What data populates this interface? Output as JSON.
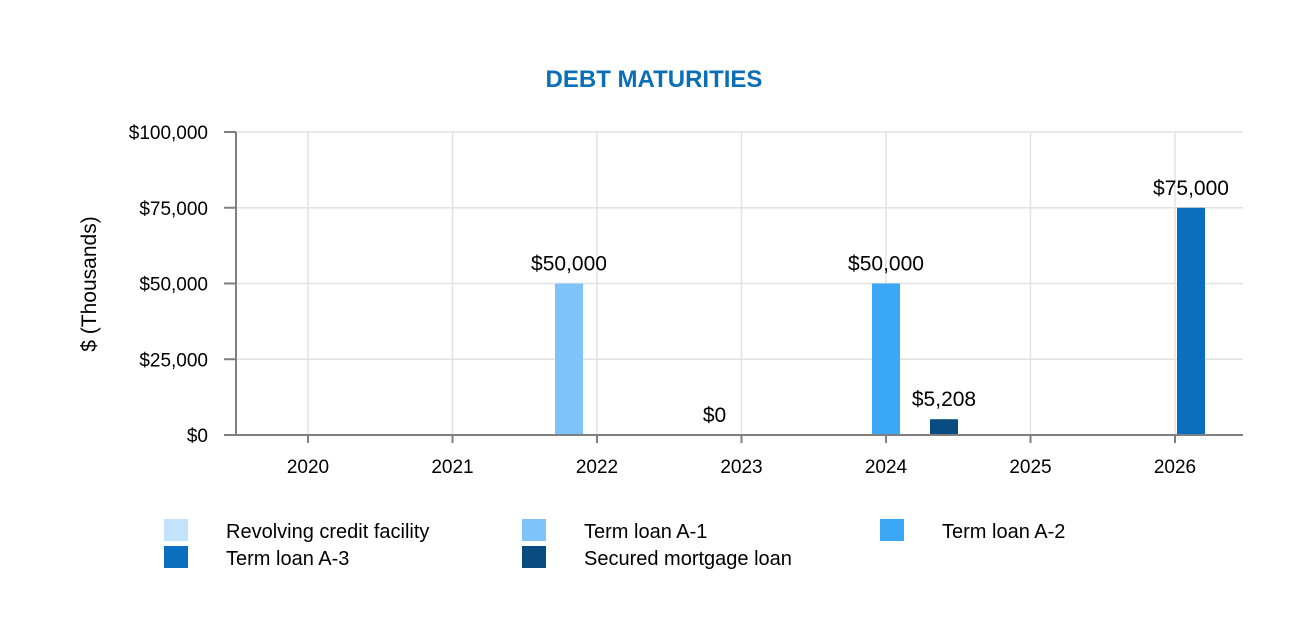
{
  "chart_data": {
    "type": "bar",
    "title": "DEBT MATURITIES",
    "xlabel": "",
    "ylabel": "$ (Thousands)",
    "ylim": [
      0,
      100000
    ],
    "categories": [
      "2020",
      "2021",
      "2022",
      "2023",
      "2024",
      "2025",
      "2026"
    ],
    "y_ticks": [
      0,
      25000,
      50000,
      75000,
      100000
    ],
    "y_tick_labels": [
      "$0",
      "$25,000",
      "$50,000",
      "$75,000",
      "$100,000"
    ],
    "grid": true,
    "legend_position": "bottom",
    "series": [
      {
        "name": "Revolving credit facility",
        "color": "#c3e3fb",
        "values": [
          0,
          0,
          0,
          0,
          0,
          0,
          0
        ]
      },
      {
        "name": "Term loan A-1",
        "color": "#7ec4fb",
        "values": [
          0,
          0,
          50000,
          0,
          0,
          0,
          0
        ]
      },
      {
        "name": "Term loan A-2",
        "color": "#3aa8f7",
        "values": [
          0,
          0,
          0,
          0,
          50000,
          0,
          0
        ]
      },
      {
        "name": "Term loan A-3",
        "color": "#0a6fbe",
        "values": [
          0,
          0,
          0,
          0,
          0,
          0,
          75000
        ]
      },
      {
        "name": "Secured mortgage loan",
        "color": "#074b80",
        "values": [
          0,
          0,
          0,
          0,
          5208,
          0,
          0
        ]
      }
    ],
    "data_labels": [
      {
        "category": "2022",
        "series": "Term loan A-1",
        "text": "$50,000"
      },
      {
        "category": "2023",
        "series": "",
        "text": "$0"
      },
      {
        "category": "2024",
        "series": "Term loan A-2",
        "text": "$50,000"
      },
      {
        "category": "2024",
        "series": "Secured mortgage loan",
        "text": "$5,208"
      },
      {
        "category": "2026",
        "series": "Term loan A-3",
        "text": "$75,000"
      }
    ]
  }
}
